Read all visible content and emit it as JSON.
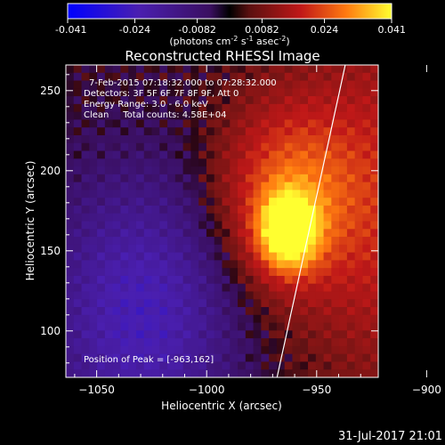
{
  "colorbar": {
    "tick_labels": [
      "-0.041",
      "-0.024",
      "-0.0082",
      "0.0082",
      "0.024",
      "0.041"
    ],
    "tick_values": [
      -0.041,
      -0.024,
      -0.0082,
      0.0082,
      0.024,
      0.041
    ],
    "range": [
      -0.041,
      0.041
    ],
    "units_main": "(photons cm",
    "units_sup1": "-2",
    "units_mid1": " s",
    "units_sup2": "-1",
    "units_mid2": " asec",
    "units_sup3": "-2",
    "units_end": ")"
  },
  "chart_data": {
    "type": "heatmap",
    "title": "Reconstructed RHESSI Image",
    "xlabel": "Heliocentric X (arcsec)",
    "ylabel": "Heliocentric Y (arcsec)",
    "xlim": [
      -1064,
      -922
    ],
    "ylim": [
      71,
      266
    ],
    "x_ticks": [
      -1050,
      -1000,
      -950,
      -900
    ],
    "x_tick_labels": [
      "−1050",
      "−1000",
      "−950",
      "−900"
    ],
    "y_ticks": [
      100,
      150,
      200,
      250
    ],
    "y_tick_labels": [
      "100",
      "150",
      "200",
      "250"
    ],
    "peak": [
      -963,
      162
    ],
    "annotations": [
      "7-Feb-2015 07:18:32.000 to 07:28:32.000",
      "Detectors: 3F 5F 6F 7F 8F 9F, Att 0",
      "Energy Range: 3.0 - 6.0 keV",
      "Clean     Total counts: 4.58E+04"
    ],
    "peak_label": "Position of Peak = [-963,162]",
    "limb_curve_x": [
      -960,
      -953
    ]
  },
  "footer": {
    "timestamp": "31-Jul-2017 21:01"
  }
}
